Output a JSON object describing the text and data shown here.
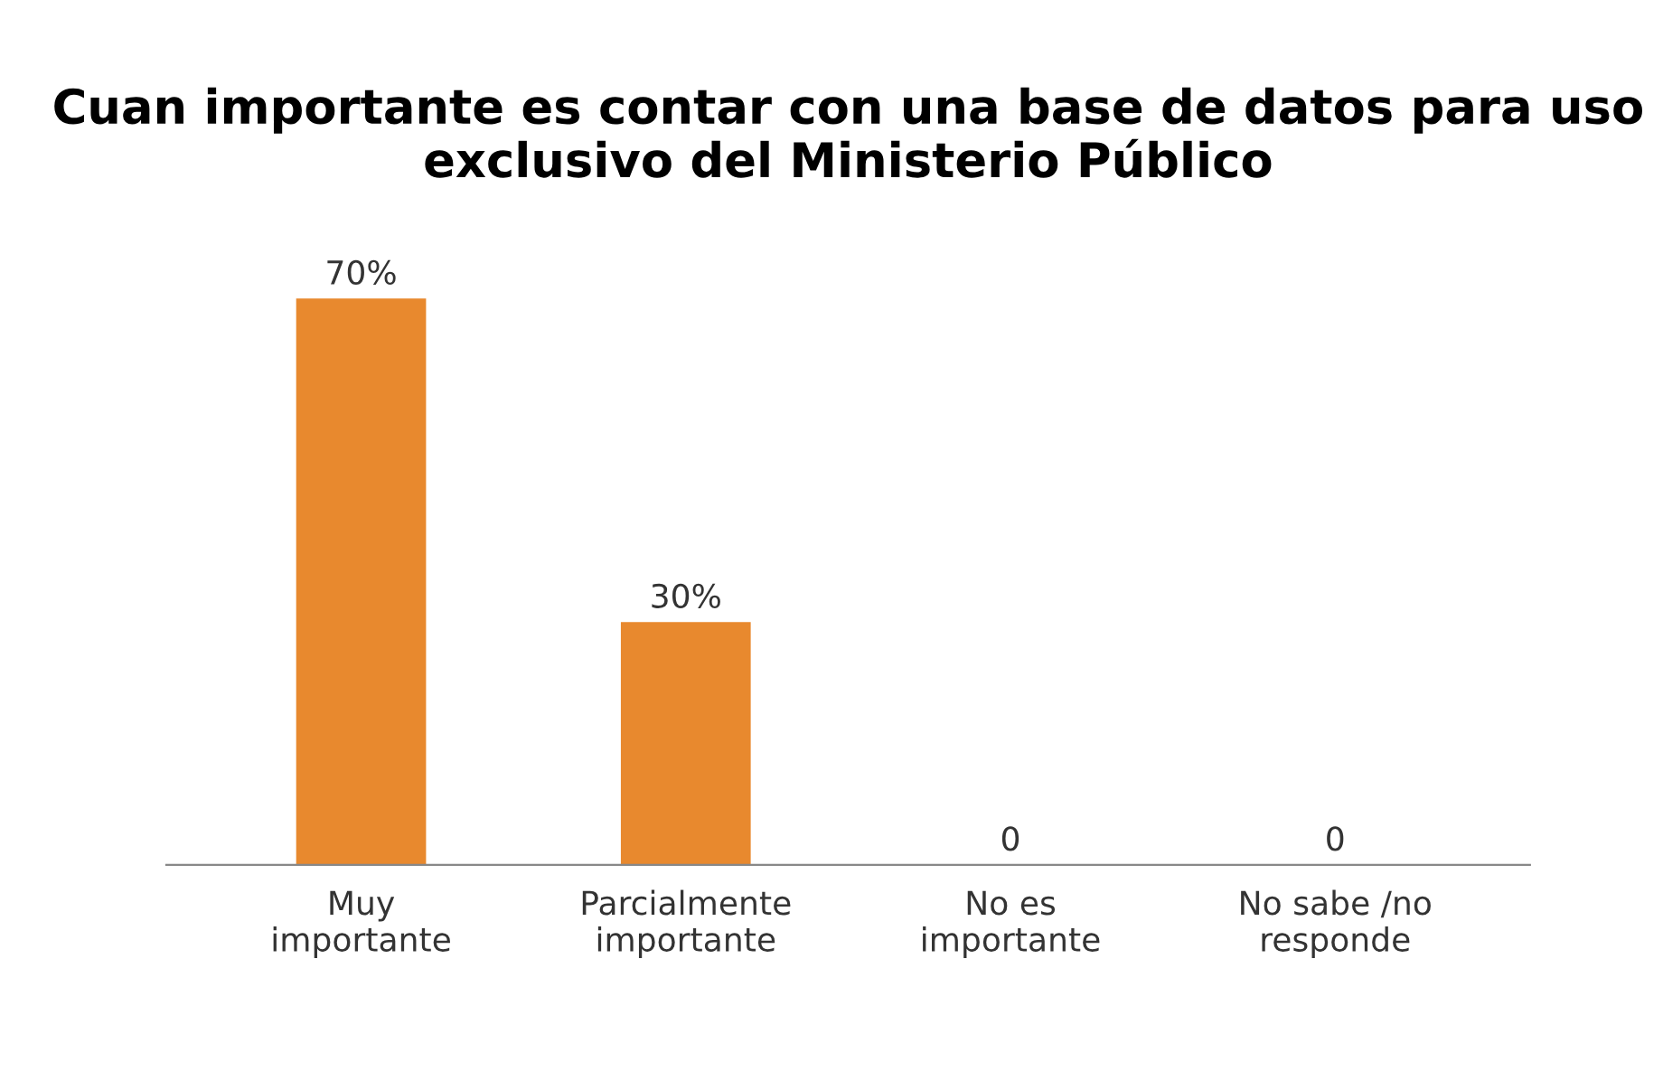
{
  "chart_data": {
    "type": "bar",
    "title": "Cuan importante es contar con una base de datos para uso exclusivo del Ministerio Público",
    "categories": [
      "Muy\nimportante",
      "Parcialmente\nimportante",
      "No es\nimportante",
      "No sabe /no\nresponde"
    ],
    "values": [
      70,
      30,
      0,
      0
    ],
    "value_labels": [
      "70%",
      "30%",
      "0",
      "0"
    ],
    "color": "#e8892e"
  }
}
